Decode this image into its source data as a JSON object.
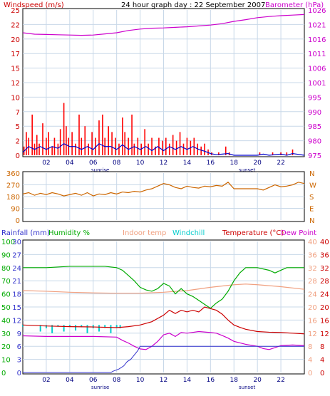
{
  "colors": {
    "wind": "#cc0000",
    "gust_bar": "#ff0000",
    "wind_avg": "#0000cc",
    "barometer": "#cc00cc",
    "direction": "#cc6600",
    "rainfall": "#3333cc",
    "humidity": "#00aa00",
    "indoor": "#f0a080",
    "windchill": "#00cccc",
    "temperature": "#cc0000",
    "dewpoint": "#cc00cc",
    "grid": "#c8d8e8",
    "frame": "#000000"
  },
  "top_panel": {
    "title": "24 hour graph day : 22 September 2007",
    "left_label": "Windspeed (m/s)",
    "right_label": "Barometer (hPa)"
  },
  "bottom_panel": {
    "labels": {
      "rainfall": "Rainfall (mm)",
      "humidity": "Humidity %",
      "indoor": "Indoor temp",
      "windchill": "Windchill",
      "temperature": "Temperature (°C)",
      "dewpoint": "Dew Point"
    }
  },
  "x_ticks": [
    "02",
    "04",
    "06",
    "08",
    "10",
    "12",
    "14",
    "16",
    "18",
    "20",
    "22"
  ],
  "sun_labels": {
    "sunrise": "sunrise",
    "sunset": "sunset"
  },
  "chart_data": [
    {
      "type": "bar",
      "name": "wind",
      "x_range": [
        0,
        24
      ],
      "y_left_ticks": [
        "0",
        "2",
        "5",
        "7",
        "10",
        "12",
        "15",
        "17",
        "20",
        "22",
        "25"
      ],
      "y_left_range": [
        0,
        25
      ],
      "y_right_ticks": [
        "975",
        "980",
        "985",
        "990",
        "995",
        "1001",
        "1006",
        "1011",
        "1016",
        "1021",
        "1026"
      ],
      "y_right_range": [
        975,
        1026
      ],
      "gusts": [
        [
          0.1,
          1.5
        ],
        [
          0.3,
          4
        ],
        [
          0.5,
          3
        ],
        [
          0.8,
          7
        ],
        [
          1,
          2
        ],
        [
          1.2,
          3.5
        ],
        [
          1.4,
          2
        ],
        [
          1.7,
          5.5
        ],
        [
          2,
          3
        ],
        [
          2.2,
          4
        ],
        [
          2.5,
          1.5
        ],
        [
          2.7,
          3
        ],
        [
          3,
          2
        ],
        [
          3.2,
          4.5
        ],
        [
          3.5,
          9
        ],
        [
          3.7,
          5
        ],
        [
          3.9,
          3
        ],
        [
          4.2,
          4
        ],
        [
          4.5,
          2
        ],
        [
          4.8,
          7
        ],
        [
          5,
          3
        ],
        [
          5.3,
          5
        ],
        [
          5.6,
          2
        ],
        [
          5.9,
          4
        ],
        [
          6.2,
          3
        ],
        [
          6.5,
          6
        ],
        [
          6.8,
          7
        ],
        [
          7,
          3
        ],
        [
          7.3,
          5
        ],
        [
          7.6,
          4
        ],
        [
          7.9,
          3
        ],
        [
          8.2,
          2
        ],
        [
          8.5,
          6.5
        ],
        [
          8.7,
          4
        ],
        [
          9,
          3
        ],
        [
          9.3,
          7
        ],
        [
          9.5,
          2
        ],
        [
          9.8,
          3
        ],
        [
          10.1,
          2
        ],
        [
          10.4,
          4.5
        ],
        [
          10.7,
          2
        ],
        [
          11,
          3
        ],
        [
          11.3,
          1.5
        ],
        [
          11.6,
          3
        ],
        [
          11.9,
          2.5
        ],
        [
          12.2,
          3
        ],
        [
          12.5,
          2
        ],
        [
          12.8,
          3.5
        ],
        [
          13.1,
          2.5
        ],
        [
          13.4,
          4
        ],
        [
          13.7,
          2
        ],
        [
          14,
          3
        ],
        [
          14.3,
          2.5
        ],
        [
          14.6,
          3
        ],
        [
          14.9,
          2
        ],
        [
          15.2,
          1.5
        ],
        [
          15.5,
          2
        ],
        [
          15.8,
          1
        ],
        [
          16.1,
          0.5
        ],
        [
          16.7,
          0.5
        ],
        [
          17.3,
          1.5
        ],
        [
          17.6,
          0.5
        ],
        [
          20.2,
          0.5
        ],
        [
          21.3,
          0.5
        ],
        [
          22,
          0.5
        ],
        [
          22.5,
          0.5
        ],
        [
          23,
          1
        ]
      ],
      "avg": [
        [
          0,
          0.5
        ],
        [
          0.5,
          1.5
        ],
        [
          1,
          1
        ],
        [
          1.5,
          1.5
        ],
        [
          2,
          1
        ],
        [
          2.5,
          1.5
        ],
        [
          3,
          1.2
        ],
        [
          3.5,
          2
        ],
        [
          4,
          1.5
        ],
        [
          4.5,
          1.5
        ],
        [
          5,
          1
        ],
        [
          5.5,
          1.5
        ],
        [
          6,
          1
        ],
        [
          6.5,
          2
        ],
        [
          7,
          1.5
        ],
        [
          7.5,
          1.5
        ],
        [
          8,
          1
        ],
        [
          8.5,
          1.8
        ],
        [
          9,
          1
        ],
        [
          9.5,
          1.5
        ],
        [
          10,
          1
        ],
        [
          10.5,
          1.5
        ],
        [
          11,
          0.8
        ],
        [
          11.5,
          1.5
        ],
        [
          12,
          0.8
        ],
        [
          12.5,
          1.5
        ],
        [
          13,
          1
        ],
        [
          13.5,
          1.5
        ],
        [
          14,
          1
        ],
        [
          14.5,
          1.5
        ],
        [
          15,
          1
        ],
        [
          15.5,
          0.7
        ],
        [
          16,
          0.3
        ],
        [
          16.5,
          0.1
        ],
        [
          17,
          0.2
        ],
        [
          17.5,
          0.3
        ],
        [
          18,
          0
        ],
        [
          20,
          0
        ],
        [
          20.5,
          0.2
        ],
        [
          21,
          0
        ],
        [
          22,
          0.2
        ],
        [
          22.5,
          0
        ],
        [
          23,
          0.3
        ],
        [
          24,
          0
        ]
      ],
      "barometer": [
        [
          0,
          1018
        ],
        [
          1,
          1017.5
        ],
        [
          2,
          1017.4
        ],
        [
          3,
          1017.3
        ],
        [
          4,
          1017.2
        ],
        [
          5,
          1017.1
        ],
        [
          6,
          1017.2
        ],
        [
          7,
          1017.6
        ],
        [
          8,
          1018
        ],
        [
          9,
          1018.8
        ],
        [
          10,
          1019.3
        ],
        [
          11,
          1019.6
        ],
        [
          12,
          1019.7
        ],
        [
          13,
          1019.9
        ],
        [
          14,
          1020.1
        ],
        [
          15,
          1020.4
        ],
        [
          16,
          1020.7
        ],
        [
          17,
          1021.2
        ],
        [
          18,
          1022
        ],
        [
          19,
          1022.6
        ],
        [
          20,
          1023.3
        ],
        [
          21,
          1023.7
        ],
        [
          22,
          1024
        ],
        [
          23,
          1024.2
        ],
        [
          24,
          1024.4
        ]
      ]
    },
    {
      "type": "line",
      "name": "wind_direction",
      "x_range": [
        0,
        24
      ],
      "y_left_ticks": [
        "0",
        "90",
        "180",
        "270",
        "360"
      ],
      "y_range": [
        0,
        360
      ],
      "y_right_ticks": [
        "N",
        "E",
        "S",
        "W",
        "N"
      ],
      "values": [
        [
          0,
          200
        ],
        [
          0.5,
          210
        ],
        [
          1,
          190
        ],
        [
          1.5,
          205
        ],
        [
          2,
          195
        ],
        [
          2.5,
          210
        ],
        [
          3,
          200
        ],
        [
          3.5,
          185
        ],
        [
          4,
          195
        ],
        [
          4.5,
          205
        ],
        [
          5,
          190
        ],
        [
          5.5,
          210
        ],
        [
          6,
          185
        ],
        [
          6.5,
          200
        ],
        [
          7,
          195
        ],
        [
          7.5,
          210
        ],
        [
          8,
          200
        ],
        [
          8.5,
          215
        ],
        [
          9,
          210
        ],
        [
          9.5,
          220
        ],
        [
          10,
          215
        ],
        [
          10.5,
          230
        ],
        [
          11,
          240
        ],
        [
          11.5,
          260
        ],
        [
          12,
          280
        ],
        [
          12.5,
          270
        ],
        [
          13,
          250
        ],
        [
          13.5,
          240
        ],
        [
          14,
          260
        ],
        [
          14.5,
          250
        ],
        [
          15,
          245
        ],
        [
          15.5,
          260
        ],
        [
          16,
          255
        ],
        [
          16.5,
          265
        ],
        [
          17,
          260
        ],
        [
          17.5,
          290
        ],
        [
          18,
          240
        ],
        [
          19,
          240
        ],
        [
          20,
          240
        ],
        [
          20.5,
          230
        ],
        [
          21,
          250
        ],
        [
          21.5,
          270
        ],
        [
          22,
          255
        ],
        [
          22.5,
          260
        ],
        [
          23,
          270
        ],
        [
          23.5,
          290
        ],
        [
          24,
          280
        ]
      ]
    },
    {
      "type": "line",
      "name": "temperature_panel",
      "x_range": [
        0,
        24
      ],
      "humidity_ticks": [
        "0",
        "10",
        "20",
        "30",
        "40",
        "50",
        "60",
        "70",
        "80",
        "90",
        "100"
      ],
      "rain_ticks": [
        "0",
        "3",
        "6",
        "9",
        "12",
        "15",
        "18",
        "21",
        "24",
        "27",
        "30"
      ],
      "indoor_ticks": [
        "0",
        "4",
        "8",
        "12",
        "16",
        "20",
        "24",
        "28",
        "32",
        "36",
        "40"
      ],
      "temp_ticks": [
        "0",
        "4",
        "8",
        "12",
        "16",
        "20",
        "24",
        "28",
        "32",
        "36",
        "40"
      ],
      "temp_range": [
        0,
        40
      ],
      "humidity": [
        [
          0,
          80
        ],
        [
          2,
          80
        ],
        [
          4,
          81
        ],
        [
          6,
          81
        ],
        [
          7,
          81
        ],
        [
          8,
          80
        ],
        [
          8.5,
          78
        ],
        [
          9,
          74
        ],
        [
          9.5,
          70
        ],
        [
          10,
          65
        ],
        [
          10.5,
          63
        ],
        [
          11,
          62
        ],
        [
          11.5,
          64
        ],
        [
          12,
          68
        ],
        [
          12.5,
          66
        ],
        [
          13,
          60
        ],
        [
          13.5,
          64
        ],
        [
          14,
          60
        ],
        [
          14.5,
          58
        ],
        [
          15,
          55
        ],
        [
          15.5,
          52
        ],
        [
          16,
          49
        ],
        [
          16.5,
          53
        ],
        [
          17,
          56
        ],
        [
          17.5,
          62
        ],
        [
          18,
          70
        ],
        [
          18.5,
          76
        ],
        [
          19,
          80
        ],
        [
          20,
          80
        ],
        [
          21,
          78
        ],
        [
          21.5,
          76
        ],
        [
          22,
          78
        ],
        [
          22.5,
          80
        ],
        [
          23,
          80
        ],
        [
          24,
          80
        ]
      ],
      "indoor": [
        [
          0,
          25
        ],
        [
          2,
          24.8
        ],
        [
          4,
          24.5
        ],
        [
          6,
          24.3
        ],
        [
          8,
          24.2
        ],
        [
          10,
          24.2
        ],
        [
          12,
          24.5
        ],
        [
          14,
          25
        ],
        [
          16,
          26
        ],
        [
          18,
          26.8
        ],
        [
          19,
          27
        ],
        [
          20,
          26.8
        ],
        [
          22,
          26.2
        ],
        [
          24,
          25.4
        ]
      ],
      "windchill": [
        [
          0,
          14
        ],
        [
          1,
          14.5
        ],
        [
          1.5,
          12.5
        ],
        [
          2,
          13.5
        ],
        [
          2.5,
          12
        ],
        [
          3,
          14
        ],
        [
          3.5,
          12.5
        ],
        [
          4,
          14
        ],
        [
          4.5,
          12.8
        ],
        [
          5,
          13.8
        ],
        [
          5.5,
          12
        ],
        [
          6,
          13.5
        ],
        [
          6.5,
          12.5
        ],
        [
          7,
          13.6
        ],
        [
          7.5,
          12
        ],
        [
          8,
          13.8
        ],
        [
          8.3,
          13.5
        ]
      ],
      "temperature": [
        [
          0,
          14.5
        ],
        [
          2,
          14.2
        ],
        [
          4,
          14.0
        ],
        [
          6,
          13.9
        ],
        [
          8,
          13.7
        ],
        [
          9,
          14
        ],
        [
          10,
          14.5
        ],
        [
          11,
          15.5
        ],
        [
          12,
          17.5
        ],
        [
          12.5,
          19
        ],
        [
          13,
          18
        ],
        [
          13.5,
          19
        ],
        [
          14,
          18.5
        ],
        [
          14.5,
          19
        ],
        [
          15,
          18.5
        ],
        [
          15.5,
          20
        ],
        [
          16,
          19.5
        ],
        [
          16.5,
          19
        ],
        [
          17,
          17.8
        ],
        [
          17.5,
          16
        ],
        [
          18,
          14.5
        ],
        [
          18.5,
          13.8
        ],
        [
          19,
          13.2
        ],
        [
          20,
          12.5
        ],
        [
          21,
          12.3
        ],
        [
          22,
          12.2
        ],
        [
          23,
          12.0
        ],
        [
          24,
          11.8
        ]
      ],
      "dewpoint": [
        [
          0,
          11.2
        ],
        [
          2,
          11
        ],
        [
          4,
          11
        ],
        [
          6,
          11
        ],
        [
          8,
          10.8
        ],
        [
          8.5,
          9.8
        ],
        [
          9,
          9
        ],
        [
          9.5,
          8
        ],
        [
          10,
          7.2
        ],
        [
          10.5,
          7
        ],
        [
          11,
          8
        ],
        [
          11.5,
          9.5
        ],
        [
          12,
          11.5
        ],
        [
          12.5,
          12
        ],
        [
          13,
          11
        ],
        [
          13.5,
          12.2
        ],
        [
          14,
          12
        ],
        [
          15,
          12.5
        ],
        [
          16,
          12.2
        ],
        [
          16.5,
          12
        ],
        [
          17,
          11.3
        ],
        [
          17.5,
          10.5
        ],
        [
          18,
          9.5
        ],
        [
          19,
          8.6
        ],
        [
          20,
          8
        ],
        [
          20.5,
          7.3
        ],
        [
          21,
          7
        ],
        [
          21.5,
          7.6
        ],
        [
          22,
          8.2
        ],
        [
          23,
          8.4
        ],
        [
          24,
          8.2
        ]
      ],
      "rainfall": [
        [
          0,
          0
        ],
        [
          7.5,
          0
        ],
        [
          7.7,
          0.3
        ],
        [
          8.2,
          0.8
        ],
        [
          8.6,
          1.5
        ],
        [
          8.9,
          2.5
        ],
        [
          9.2,
          3
        ],
        [
          9.5,
          4
        ],
        [
          9.8,
          5
        ],
        [
          10,
          6
        ],
        [
          10.2,
          6
        ],
        [
          24,
          6
        ]
      ]
    }
  ]
}
